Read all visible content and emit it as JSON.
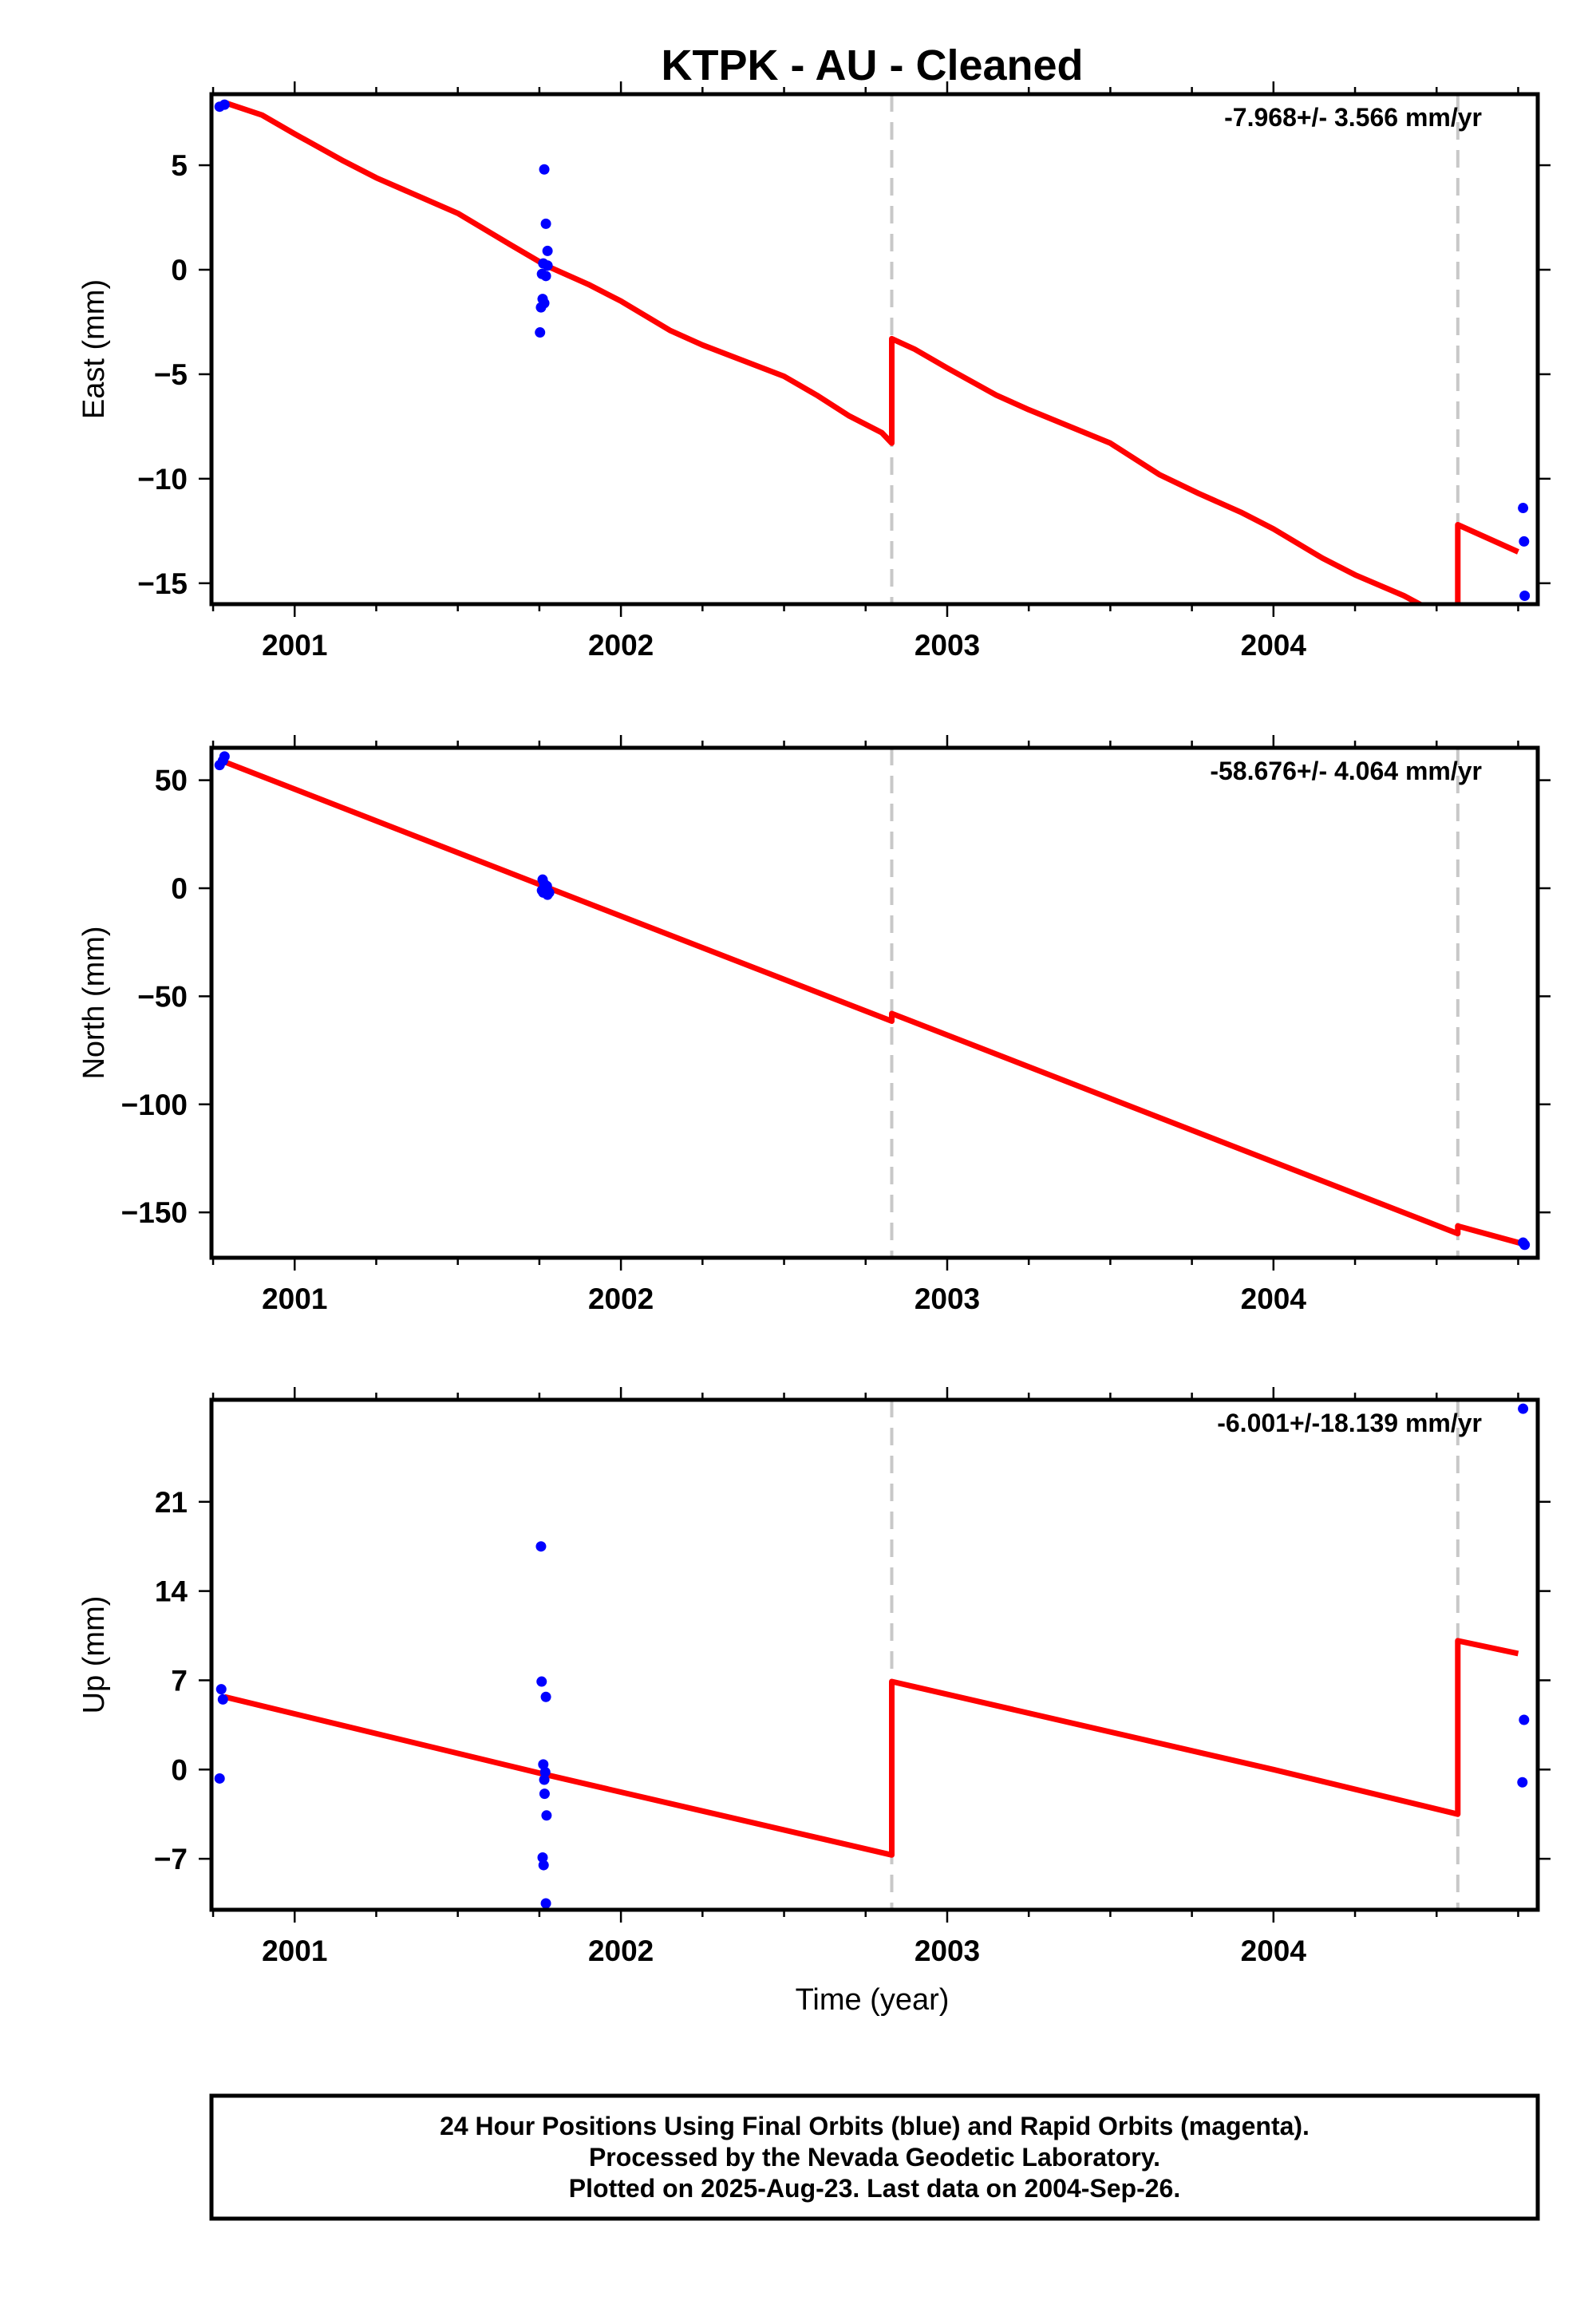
{
  "title": "KTPK  - AU - Cleaned",
  "xlabel": "Time (year)",
  "footer": {
    "lines": [
      "24 Hour Positions Using Final Orbits (blue) and Rapid Orbits (magenta).",
      "Processed by the Nevada Geodetic Laboratory.",
      "Plotted on 2025-Aug-23. Last data on 2004-Sep-26."
    ]
  },
  "colors": {
    "data_points": "#0000ff",
    "model_line": "#ff0000",
    "offset_lines": "#c8c8c8",
    "frame": "#000000"
  },
  "chart_data": [
    {
      "type": "scatter",
      "ylabel": "East (mm)",
      "rate_text": "-7.968+/- 3.566 mm/yr",
      "xlim": [
        2000.745,
        2004.81
      ],
      "ylim": [
        -16.0,
        8.4
      ],
      "xticks": [
        2001,
        2002,
        2003,
        2004
      ],
      "yticks": [
        5,
        0,
        -5,
        -10,
        -15
      ],
      "ytick_labels": [
        "5",
        "0",
        "−5",
        "−10",
        "−15"
      ],
      "offsets": [
        2002.83,
        2004.565
      ],
      "points": [
        [
          2000.77,
          7.8
        ],
        [
          2000.785,
          7.9
        ],
        [
          2001.765,
          4.8
        ],
        [
          2001.77,
          2.2
        ],
        [
          2001.775,
          0.9
        ],
        [
          2001.762,
          0.3
        ],
        [
          2001.758,
          -0.2
        ],
        [
          2001.77,
          -0.3
        ],
        [
          2001.775,
          0.2
        ],
        [
          2001.76,
          -1.4
        ],
        [
          2001.765,
          -1.6
        ],
        [
          2001.755,
          -1.8
        ],
        [
          2001.752,
          -3.0
        ],
        [
          2004.765,
          -11.4
        ],
        [
          2004.768,
          -13.0
        ],
        [
          2004.77,
          -15.6
        ]
      ],
      "model": [
        [
          2000.785,
          8.0
        ],
        [
          2000.9,
          7.4
        ],
        [
          2001.0,
          6.5
        ],
        [
          2001.15,
          5.2
        ],
        [
          2001.25,
          4.4
        ],
        [
          2001.5,
          2.7
        ],
        [
          2001.65,
          1.3
        ],
        [
          2001.77,
          0.2
        ],
        [
          2001.9,
          -0.7
        ],
        [
          2002.0,
          -1.5
        ],
        [
          2002.15,
          -2.9
        ],
        [
          2002.25,
          -3.6
        ],
        [
          2002.5,
          -5.1
        ],
        [
          2002.6,
          -6.0
        ],
        [
          2002.7,
          -7.0
        ],
        [
          2002.8,
          -7.8
        ],
        [
          2002.83,
          -8.3
        ],
        [
          2002.83,
          -3.3
        ],
        [
          2002.9,
          -3.8
        ],
        [
          2003.0,
          -4.7
        ],
        [
          2003.15,
          -6.0
        ],
        [
          2003.25,
          -6.7
        ],
        [
          2003.5,
          -8.3
        ],
        [
          2003.65,
          -9.8
        ],
        [
          2003.77,
          -10.7
        ],
        [
          2003.9,
          -11.6
        ],
        [
          2004.0,
          -12.4
        ],
        [
          2004.15,
          -13.8
        ],
        [
          2004.25,
          -14.6
        ],
        [
          2004.4,
          -15.6
        ],
        [
          2004.46,
          -16.1
        ],
        [
          2004.565,
          -16.1
        ],
        [
          2004.565,
          -12.2
        ],
        [
          2004.75,
          -13.5
        ]
      ]
    },
    {
      "type": "scatter",
      "ylabel": "North (mm)",
      "rate_text": "-58.676+/- 4.064 mm/yr",
      "xlim": [
        2000.745,
        2004.81
      ],
      "ylim": [
        -171,
        65
      ],
      "xticks": [
        2001,
        2002,
        2003,
        2004
      ],
      "yticks": [
        50,
        0,
        -50,
        -100,
        -150
      ],
      "ytick_labels": [
        "50",
        "0",
        "−50",
        "−100",
        "−150"
      ],
      "offsets": [
        2002.83,
        2004.565
      ],
      "points": [
        [
          2000.77,
          57
        ],
        [
          2000.785,
          61
        ],
        [
          2000.78,
          59
        ],
        [
          2001.76,
          4
        ],
        [
          2001.765,
          2
        ],
        [
          2001.758,
          -1
        ],
        [
          2001.77,
          0
        ],
        [
          2001.773,
          1
        ],
        [
          2001.762,
          -2
        ],
        [
          2001.775,
          -3
        ],
        [
          2001.78,
          -2
        ],
        [
          2004.765,
          -164
        ],
        [
          2004.77,
          -165
        ]
      ],
      "model": [
        [
          2000.785,
          58.5
        ],
        [
          2001.77,
          0.6
        ],
        [
          2002.83,
          -61.5
        ],
        [
          2002.83,
          -58.0
        ],
        [
          2004.565,
          -159.8
        ],
        [
          2004.565,
          -156.3
        ],
        [
          2004.77,
          -164.8
        ]
      ]
    },
    {
      "type": "scatter",
      "ylabel": "Up (mm)",
      "rate_text": "-6.001+/-18.139 mm/yr",
      "xlim": [
        2000.745,
        2004.81
      ],
      "ylim": [
        -11,
        29
      ],
      "xticks": [
        2001,
        2002,
        2003,
        2004
      ],
      "yticks": [
        21,
        14,
        7,
        0,
        -7
      ],
      "ytick_labels": [
        "21",
        "14",
        "7",
        "0",
        "−7"
      ],
      "offsets": [
        2002.83,
        2004.565
      ],
      "points": [
        [
          2000.77,
          -0.7
        ],
        [
          2000.775,
          6.3
        ],
        [
          2000.78,
          5.5
        ],
        [
          2001.755,
          17.5
        ],
        [
          2001.757,
          6.9
        ],
        [
          2001.77,
          5.7
        ],
        [
          2001.762,
          0.4
        ],
        [
          2001.768,
          -0.2
        ],
        [
          2001.765,
          -0.8
        ],
        [
          2001.766,
          -1.9
        ],
        [
          2001.772,
          -3.6
        ],
        [
          2001.76,
          -6.9
        ],
        [
          2001.763,
          -7.5
        ],
        [
          2001.77,
          -10.5
        ],
        [
          2004.765,
          28.3
        ],
        [
          2004.768,
          3.9
        ],
        [
          2004.763,
          -1.0
        ]
      ],
      "model": [
        [
          2000.785,
          5.7
        ],
        [
          2001.77,
          -0.4
        ],
        [
          2002.83,
          -6.7
        ],
        [
          2002.83,
          6.9
        ],
        [
          2004.0,
          0.0
        ],
        [
          2004.565,
          -3.5
        ],
        [
          2004.565,
          10.1
        ],
        [
          2004.75,
          9.1
        ]
      ]
    }
  ]
}
